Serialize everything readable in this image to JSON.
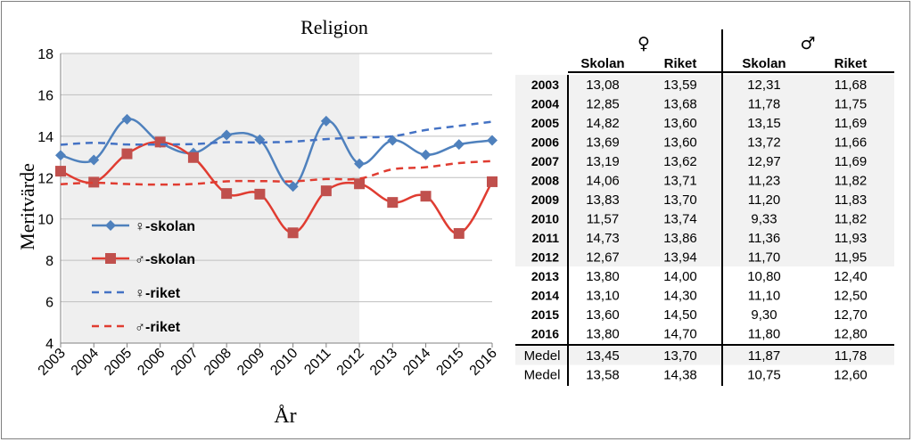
{
  "chart_data": {
    "type": "line",
    "title": "Religion",
    "xlabel": "År",
    "ylabel": "Meritvärde",
    "ylim": [
      4,
      18
    ],
    "yticks": [
      "4",
      "6",
      "8",
      "10",
      "12",
      "14",
      "16",
      "18"
    ],
    "categories": [
      "2003",
      "2004",
      "2005",
      "2006",
      "2007",
      "2008",
      "2009",
      "2010",
      "2011",
      "2012",
      "2013",
      "2014",
      "2015",
      "2016"
    ],
    "grid": true,
    "shaded_years": [
      "2003",
      "2012"
    ],
    "legend_position": "bottom-left",
    "series": [
      {
        "name": "♀-skolan",
        "style": "solid",
        "marker": "diamond",
        "color": "#4f81bd",
        "values": [
          13.08,
          12.85,
          14.82,
          13.69,
          13.19,
          14.06,
          13.83,
          11.57,
          14.73,
          12.67,
          13.8,
          13.1,
          13.6,
          13.8
        ]
      },
      {
        "name": "♂-skolan",
        "style": "solid",
        "marker": "square",
        "color": "#e03c31",
        "values": [
          12.31,
          11.78,
          13.15,
          13.72,
          12.97,
          11.23,
          11.2,
          9.33,
          11.36,
          11.7,
          10.8,
          11.1,
          9.3,
          11.8
        ]
      },
      {
        "name": "♀-riket",
        "style": "dashed",
        "color": "#4472c4",
        "values": [
          13.59,
          13.68,
          13.6,
          13.6,
          13.62,
          13.71,
          13.7,
          13.74,
          13.86,
          13.94,
          14.0,
          14.3,
          14.5,
          14.7
        ]
      },
      {
        "name": "♂-riket",
        "style": "dashed",
        "color": "#e03c31",
        "values": [
          11.68,
          11.75,
          11.69,
          11.66,
          11.69,
          11.82,
          11.83,
          11.82,
          11.93,
          11.95,
          12.4,
          12.5,
          12.7,
          12.8
        ]
      }
    ]
  },
  "table": {
    "female_symbol": "♀",
    "male_symbol": "♂",
    "headers": [
      "Skolan",
      "Riket",
      "Skolan",
      "Riket"
    ],
    "rows": [
      {
        "year": "2003",
        "cells": [
          "13,08",
          "13,59",
          "12,31",
          "11,68"
        ]
      },
      {
        "year": "2004",
        "cells": [
          "12,85",
          "13,68",
          "11,78",
          "11,75"
        ]
      },
      {
        "year": "2005",
        "cells": [
          "14,82",
          "13,60",
          "13,15",
          "11,69"
        ]
      },
      {
        "year": "2006",
        "cells": [
          "13,69",
          "13,60",
          "13,72",
          "11,66"
        ]
      },
      {
        "year": "2007",
        "cells": [
          "13,19",
          "13,62",
          "12,97",
          "11,69"
        ]
      },
      {
        "year": "2008",
        "cells": [
          "14,06",
          "13,71",
          "11,23",
          "11,82"
        ]
      },
      {
        "year": "2009",
        "cells": [
          "13,83",
          "13,70",
          "11,20",
          "11,83"
        ]
      },
      {
        "year": "2010",
        "cells": [
          "11,57",
          "13,74",
          "9,33",
          "11,82"
        ]
      },
      {
        "year": "2011",
        "cells": [
          "14,73",
          "13,86",
          "11,36",
          "11,93"
        ]
      },
      {
        "year": "2012",
        "cells": [
          "12,67",
          "13,94",
          "11,70",
          "11,95"
        ]
      },
      {
        "year": "2013",
        "cells": [
          "13,80",
          "14,00",
          "10,80",
          "12,40"
        ]
      },
      {
        "year": "2014",
        "cells": [
          "13,10",
          "14,30",
          "11,10",
          "12,50"
        ]
      },
      {
        "year": "2015",
        "cells": [
          "13,60",
          "14,50",
          "9,30",
          "12,70"
        ]
      },
      {
        "year": "2016",
        "cells": [
          "13,80",
          "14,70",
          "11,80",
          "12,80"
        ]
      }
    ],
    "medel": [
      {
        "label": "Medel",
        "cells": [
          "13,45",
          "13,70",
          "11,87",
          "11,78"
        ]
      },
      {
        "label": "Medel",
        "cells": [
          "13,58",
          "14,38",
          "10,75",
          "12,60"
        ]
      }
    ],
    "shade_color": "#f2f2f2"
  }
}
